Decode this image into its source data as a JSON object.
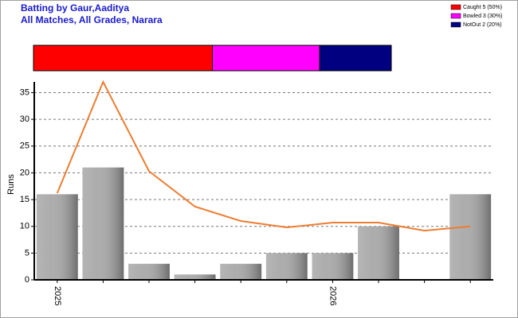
{
  "chart_data": {
    "type": "bar",
    "title": "Batting by Gaur,Aaditya",
    "subtitle": "All Matches, All Grades, Narara",
    "y_label": "Runs",
    "dismissals": [
      {
        "label": "Caught 5 (50%)",
        "color": "#ff0000",
        "value": 50
      },
      {
        "label": "Bowled 3 (30%)",
        "color": "#ff00ff",
        "value": 30
      },
      {
        "label": "NotOut 2 (20%)",
        "color": "#000080",
        "value": 20
      }
    ],
    "categories": [
      "2025",
      null,
      null,
      null,
      null,
      null,
      "2026",
      null,
      null,
      null
    ],
    "series": [
      {
        "type": "bar",
        "color": "#a8a8a8",
        "values": [
          16,
          21,
          3,
          1,
          3,
          5,
          5,
          10,
          0,
          16
        ]
      },
      {
        "type": "line",
        "color": "#ed7d31",
        "values": [
          16.2,
          37,
          20.3,
          13.7,
          11,
          9.8,
          10.7,
          10.7,
          9.2,
          10
        ]
      }
    ],
    "ylim": [
      0,
      37
    ],
    "yticks": [
      0,
      5,
      10,
      15,
      20,
      25,
      30,
      35
    ],
    "grid": true
  }
}
